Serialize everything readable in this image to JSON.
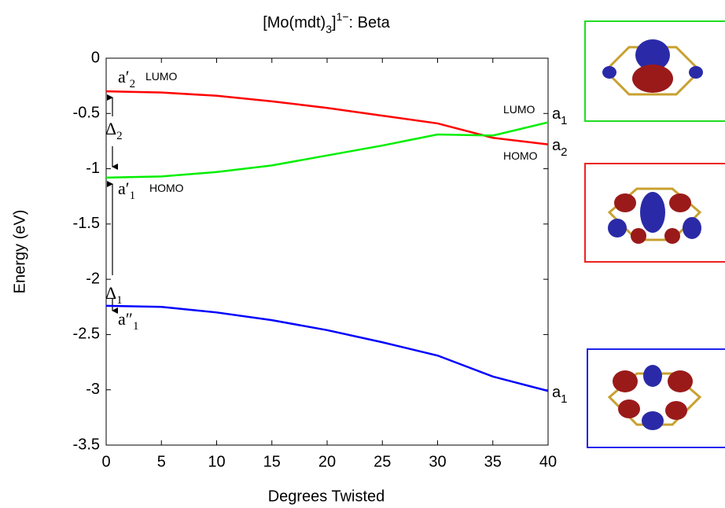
{
  "chart_data": {
    "type": "line",
    "title": {
      "main": "[Mo(mdt)",
      "sub": "3",
      "close": "]",
      "sup": "1−",
      "rest": ": Beta"
    },
    "x_label": "Degrees Twisted",
    "y_label": "Energy (eV)",
    "x": [
      0,
      5,
      10,
      15,
      20,
      25,
      30,
      35,
      40
    ],
    "series": [
      {
        "color": "#ff0000",
        "values": [
          -0.3,
          -0.31,
          -0.34,
          -0.39,
          -0.45,
          -0.52,
          -0.59,
          -0.72,
          -0.78
        ]
      },
      {
        "color": "#00ee00",
        "values": [
          -1.08,
          -1.07,
          -1.03,
          -0.97,
          -0.88,
          -0.79,
          -0.69,
          -0.7,
          -0.58
        ]
      },
      {
        "color": "#0000ff",
        "values": [
          -2.24,
          -2.25,
          -2.3,
          -2.37,
          -2.46,
          -2.57,
          -2.69,
          -2.88,
          -3.01
        ]
      }
    ],
    "xlim": [
      0,
      40
    ],
    "ylim": [
      -3.5,
      0
    ],
    "xticks": [
      0,
      5,
      10,
      15,
      20,
      25,
      30,
      35,
      40
    ],
    "yticks": [
      0,
      -0.5,
      -1,
      -1.5,
      -2,
      -2.5,
      -3,
      -3.5
    ],
    "annotations": [
      {
        "text": "a′",
        "sub": "2"
      },
      {
        "text": "LUMO"
      },
      {
        "text": "Δ",
        "sub": "2"
      },
      {
        "text": "a′",
        "sub": "1"
      },
      {
        "text": "HOMO"
      },
      {
        "text": "Δ",
        "sub": "1"
      },
      {
        "text": "a″",
        "sub": "1"
      },
      {
        "text": "LUMO"
      },
      {
        "text": "a",
        "sub": "1"
      },
      {
        "text": "a",
        "sub": "2"
      },
      {
        "text": "HOMO"
      },
      {
        "text": "a",
        "sub": "1"
      }
    ]
  }
}
